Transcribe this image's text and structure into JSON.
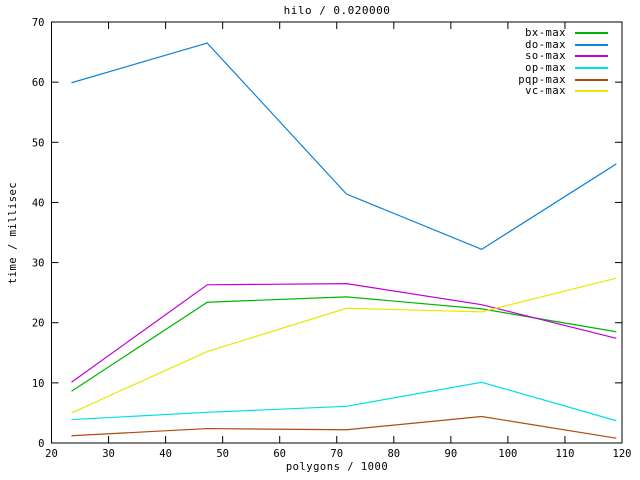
{
  "chart_data": {
    "type": "line",
    "title": "hilo / 0.020000",
    "xlabel": "polygons / 1000",
    "ylabel": "time / millisec",
    "xlim": [
      20,
      120
    ],
    "ylim": [
      0,
      70
    ],
    "xticks": [
      20,
      30,
      40,
      50,
      60,
      70,
      80,
      90,
      100,
      110,
      120
    ],
    "yticks": [
      0,
      10,
      20,
      30,
      40,
      50,
      60,
      70
    ],
    "grid": false,
    "legend_position": "top-right-inside",
    "x": [
      23.5,
      47.3,
      71.7,
      95.4,
      119
    ],
    "series": [
      {
        "name": "bx-max",
        "color": "#00b400",
        "values": [
          8.6,
          23.4,
          24.3,
          22.3,
          18.5
        ]
      },
      {
        "name": "do-max",
        "color": "#0e82dc",
        "values": [
          59.9,
          66.5,
          41.4,
          32.2,
          46.4
        ]
      },
      {
        "name": "so-max",
        "color": "#c000d8",
        "values": [
          10.1,
          26.3,
          26.5,
          23.0,
          17.4
        ]
      },
      {
        "name": "op-max",
        "color": "#00e0e0",
        "values": [
          3.9,
          5.1,
          6.1,
          10.1,
          3.7
        ]
      },
      {
        "name": "pqp-max",
        "color": "#b04a10",
        "values": [
          1.2,
          2.4,
          2.2,
          4.4,
          0.8
        ]
      },
      {
        "name": "vc-max",
        "color": "#e8e800",
        "values": [
          5.0,
          15.2,
          22.4,
          21.8,
          27.4
        ]
      }
    ]
  },
  "colors": {
    "background": "#ffffff",
    "axis": "#000000",
    "text": "#000000"
  }
}
